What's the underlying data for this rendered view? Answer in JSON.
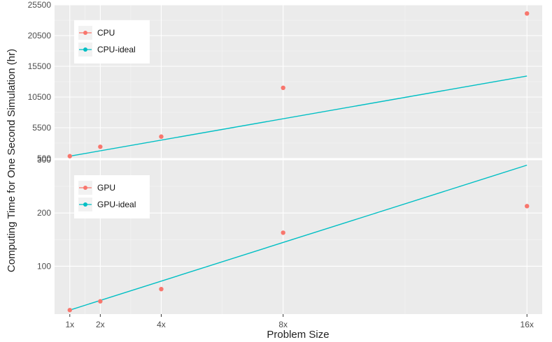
{
  "colors": {
    "panel_bg": "#ebebeb",
    "grid_major": "#ffffff",
    "grid_minor": "#f5f5f5",
    "actual": "#f8766d",
    "ideal": "#00bfc4",
    "legend_bg": "#ffffff",
    "legend_key_bg": "#f2f2f2"
  },
  "chart_data": {
    "type": "line",
    "xlabel": "Problem Size",
    "ylabel": "Computing Time for One Second Simulation (hr)",
    "x_ticks": [
      1,
      2,
      4,
      8,
      16
    ],
    "x_tick_labels": [
      "1x",
      "2x",
      "4x",
      "8x",
      "16x"
    ],
    "xlim": [
      0.5,
      16.5
    ],
    "panels": [
      {
        "name": "cpu",
        "ylim": [
          500,
          25500
        ],
        "y_ticks": [
          500,
          5500,
          10500,
          15500,
          20500,
          25500
        ],
        "y_tick_labels": [
          "500",
          "5500",
          "10500",
          "15500",
          "20500",
          "25500"
        ],
        "grid": true,
        "legend_position": "top-left",
        "series": [
          {
            "name": "CPU",
            "style": "points",
            "x": [
              1,
              2,
              4,
              8,
              16
            ],
            "y": [
              870,
              2400,
              4050,
              12000,
              24100
            ]
          },
          {
            "name": "CPU-ideal",
            "style": "line",
            "x": [
              1,
              16
            ],
            "y": [
              870,
              13920
            ]
          }
        ]
      },
      {
        "name": "gpu",
        "ylim": [
          10,
          300
        ],
        "y_ticks": [
          100,
          200,
          300
        ],
        "y_tick_labels": [
          "100",
          "200",
          "300"
        ],
        "grid": true,
        "legend_position": "top-left",
        "series": [
          {
            "name": "GPU",
            "style": "points",
            "x": [
              1,
              2,
              4,
              8,
              16
            ],
            "y": [
              17.5,
              34,
              57,
              163,
              213
            ]
          },
          {
            "name": "GPU-ideal",
            "style": "line",
            "x": [
              1,
              16
            ],
            "y": [
              17.5,
              290
            ]
          }
        ]
      }
    ]
  }
}
